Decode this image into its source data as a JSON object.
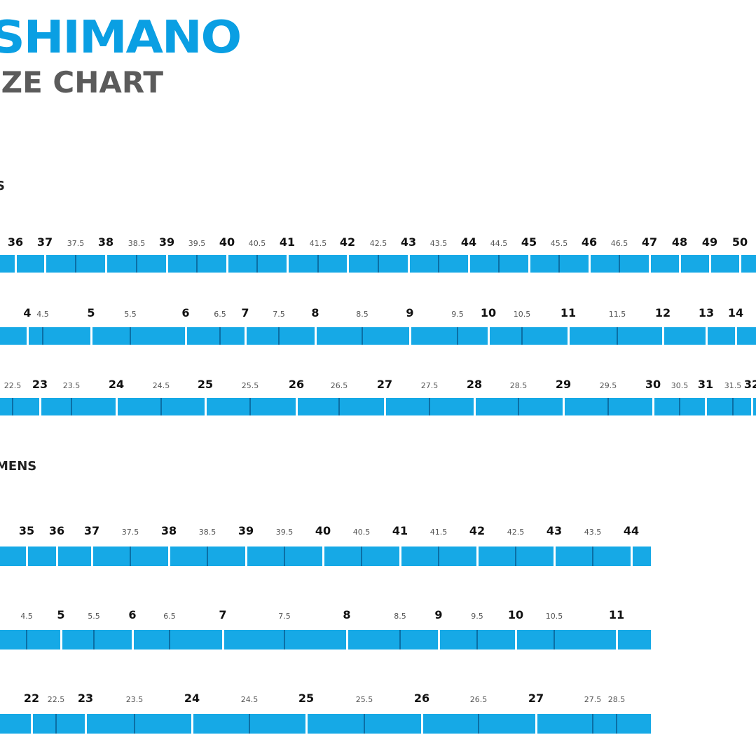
{
  "header": {
    "logo": "SHIMANO",
    "title": "IZE CHART"
  },
  "sections": [
    {
      "label": "S"
    },
    {
      "label": "MENS"
    }
  ],
  "colors": {
    "brand": "#0a9fe3",
    "bar": "#16a9e6",
    "minor_tick": "#0b6fa5",
    "title": "#5b5b5b"
  },
  "rows": [
    {
      "ticks": [
        [
          "36",
          1
        ],
        [
          "37",
          1
        ],
        [
          "37.5",
          0
        ],
        [
          "38",
          1
        ],
        [
          "38.5",
          0
        ],
        [
          "39",
          1
        ],
        [
          "39.5",
          0
        ],
        [
          "40",
          1
        ],
        [
          "40.5",
          0
        ],
        [
          "41",
          1
        ],
        [
          "41.5",
          0
        ],
        [
          "42",
          1
        ],
        [
          "42.5",
          0
        ],
        [
          "43",
          1
        ],
        [
          "43.5",
          0
        ],
        [
          "44",
          1
        ],
        [
          "44.5",
          0
        ],
        [
          "45",
          1
        ],
        [
          "45.5",
          0
        ],
        [
          "46",
          1
        ],
        [
          "46.5",
          0
        ],
        [
          "47",
          1
        ],
        [
          "48",
          1
        ],
        [
          "49",
          1
        ],
        [
          "50",
          1
        ]
      ]
    },
    {
      "ticks": [
        [
          "4",
          1
        ],
        [
          "4.5",
          0
        ],
        [
          "5",
          1
        ],
        [
          "5.5",
          0
        ],
        [
          "6",
          1
        ],
        [
          "6.5",
          0
        ],
        [
          "7",
          1
        ],
        [
          "7.5",
          0
        ],
        [
          "8",
          1
        ],
        [
          "8.5",
          0
        ],
        [
          "9",
          1
        ],
        [
          "9.5",
          0
        ],
        [
          "10",
          1
        ],
        [
          "10.5",
          0
        ],
        [
          "11",
          1
        ],
        [
          "11.5",
          0
        ],
        [
          "12",
          1
        ],
        [
          "13",
          1
        ],
        [
          "14",
          1
        ]
      ]
    },
    {
      "ticks": [
        [
          "22.5",
          0
        ],
        [
          "23",
          1
        ],
        [
          "23.5",
          0
        ],
        [
          "24",
          1
        ],
        [
          "24.5",
          0
        ],
        [
          "25",
          1
        ],
        [
          "25.5",
          0
        ],
        [
          "26",
          1
        ],
        [
          "26.5",
          0
        ],
        [
          "27",
          1
        ],
        [
          "27.5",
          0
        ],
        [
          "28",
          1
        ],
        [
          "28.5",
          0
        ],
        [
          "29",
          1
        ],
        [
          "29.5",
          0
        ],
        [
          "30",
          1
        ],
        [
          "30.5",
          0
        ],
        [
          "31",
          1
        ],
        [
          "31.5",
          0
        ],
        [
          "32",
          1
        ]
      ]
    },
    {
      "ticks": [
        [
          "35",
          1
        ],
        [
          "36",
          1
        ],
        [
          "37",
          1
        ],
        [
          "37.5",
          0
        ],
        [
          "38",
          1
        ],
        [
          "38.5",
          0
        ],
        [
          "39",
          1
        ],
        [
          "39.5",
          0
        ],
        [
          "40",
          1
        ],
        [
          "40.5",
          0
        ],
        [
          "41",
          1
        ],
        [
          "41.5",
          0
        ],
        [
          "42",
          1
        ],
        [
          "42.5",
          0
        ],
        [
          "43",
          1
        ],
        [
          "43.5",
          0
        ],
        [
          "44",
          1
        ]
      ]
    },
    {
      "ticks": [
        [
          "4.5",
          0
        ],
        [
          "5",
          1
        ],
        [
          "5.5",
          0
        ],
        [
          "6",
          1
        ],
        [
          "6.5",
          0
        ],
        [
          "7",
          1
        ],
        [
          "7.5",
          0
        ],
        [
          "8",
          1
        ],
        [
          "8.5",
          0
        ],
        [
          "9",
          1
        ],
        [
          "9.5",
          0
        ],
        [
          "10",
          1
        ],
        [
          "10.5",
          0
        ],
        [
          "11",
          1
        ]
      ]
    },
    {
      "ticks": [
        [
          "22",
          1
        ],
        [
          "22.5",
          0
        ],
        [
          "23",
          1
        ],
        [
          "23.5",
          0
        ],
        [
          "24",
          1
        ],
        [
          "24.5",
          0
        ],
        [
          "25",
          1
        ],
        [
          "25.5",
          0
        ],
        [
          "26",
          1
        ],
        [
          "26.5",
          0
        ],
        [
          "27",
          1
        ],
        [
          "27.5",
          0
        ],
        [
          "28.5",
          0
        ]
      ]
    }
  ]
}
